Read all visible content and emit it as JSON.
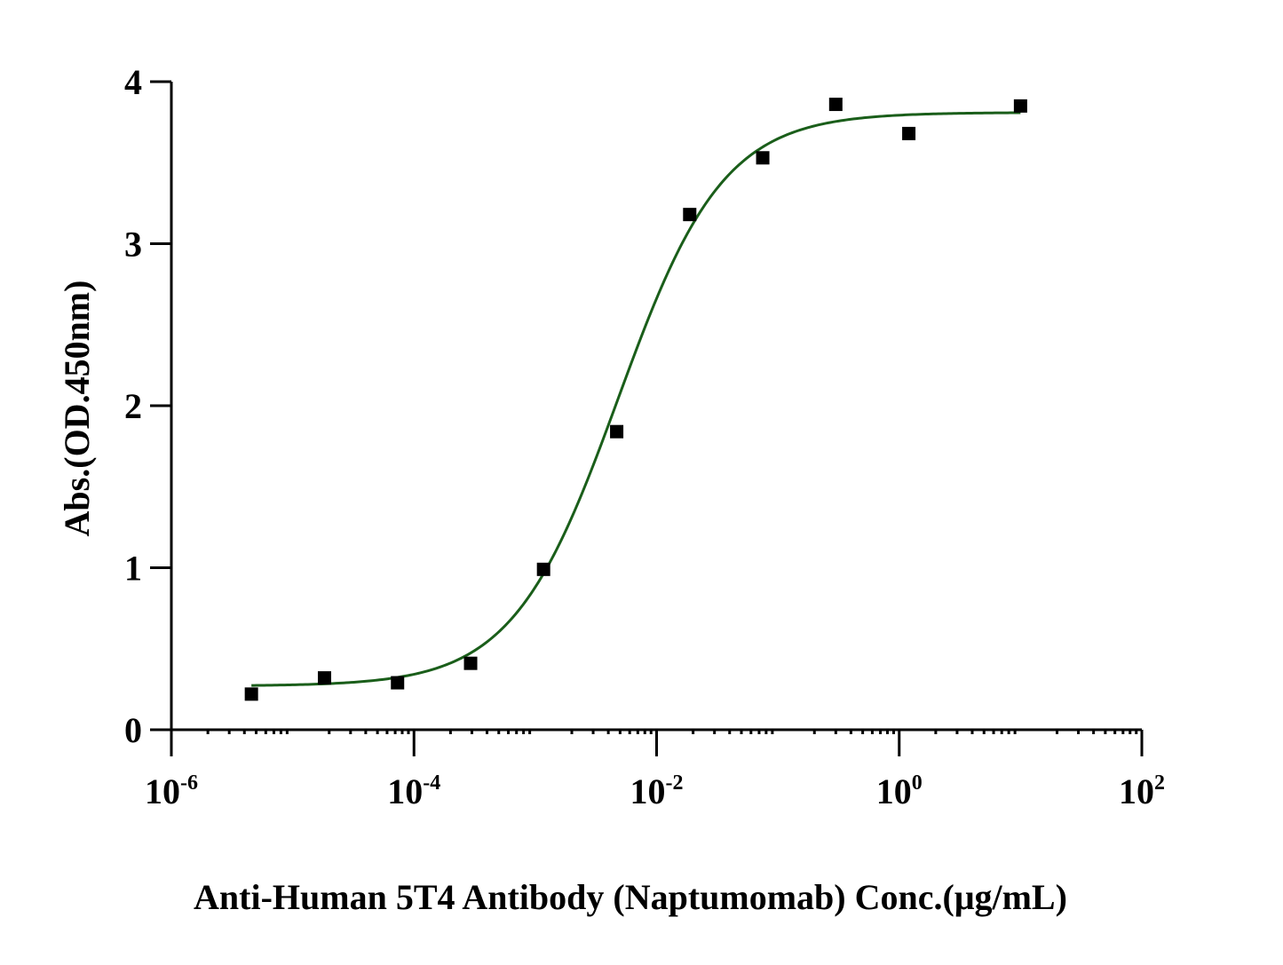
{
  "chart_data": {
    "type": "scatter",
    "title": "",
    "xlabel": "Anti-Human 5T4 Antibody (Naptumomab) Conc.(μg/mL)",
    "ylabel": "Abs.(OD.450nm)",
    "x_scale": "log",
    "xlim": [
      1e-06,
      100
    ],
    "ylim": [
      0,
      4
    ],
    "x_ticks": [
      {
        "value": 1e-06,
        "base": "10",
        "exp": "-6"
      },
      {
        "value": 0.0001,
        "base": "10",
        "exp": "-4"
      },
      {
        "value": 0.01,
        "base": "10",
        "exp": "-2"
      },
      {
        "value": 1,
        "base": "10",
        "exp": "0"
      },
      {
        "value": 100,
        "base": "10",
        "exp": "2"
      }
    ],
    "y_ticks": [
      {
        "value": 0,
        "label": "0"
      },
      {
        "value": 1,
        "label": "1"
      },
      {
        "value": 2,
        "label": "2"
      },
      {
        "value": 3,
        "label": "3"
      },
      {
        "value": 4,
        "label": "4"
      }
    ],
    "grid": false,
    "series": [
      {
        "marker": "square",
        "color": "#000000",
        "x": [
          4.57e-06,
          1.83e-05,
          7.32e-05,
          0.000293,
          0.00117,
          0.00469,
          0.01875,
          0.075,
          0.3,
          1.2,
          10
        ],
        "y": [
          0.22,
          0.32,
          0.29,
          0.41,
          0.99,
          1.84,
          3.18,
          3.53,
          3.86,
          3.68,
          3.85
        ]
      }
    ],
    "fit_curve": {
      "model": "4PL",
      "color": "#1a5e1a",
      "bottom": 0.27,
      "top": 3.81,
      "ec50": 0.0048,
      "hill": 1.0,
      "x_range": [
        4.57e-06,
        10
      ]
    }
  }
}
